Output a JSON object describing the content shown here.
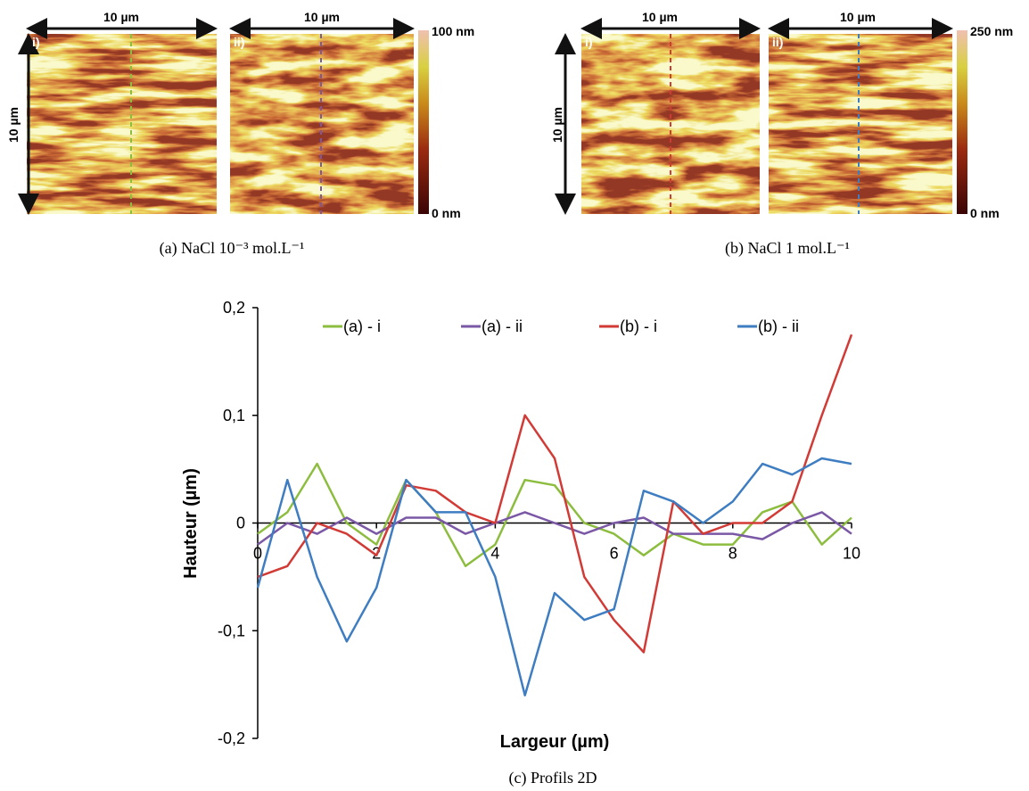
{
  "panels": [
    {
      "caption": "(a) NaCl 10⁻³ mol.L⁻¹",
      "scale_label": "10 µm",
      "images": [
        {
          "label": "i)"
        },
        {
          "label": "ii)"
        }
      ],
      "colorbar": {
        "max_label": "100 nm",
        "min_label": "0 nm"
      }
    },
    {
      "caption": "(b) NaCl 1 mol.L⁻¹",
      "scale_label": "10 µm",
      "images": [
        {
          "label": "i)"
        },
        {
          "label": "ii)"
        }
      ],
      "colorbar": {
        "max_label": "250 nm",
        "min_label": "0 nm"
      }
    }
  ],
  "chart_data": {
    "type": "line",
    "caption": "(c) Profils 2D",
    "x_label": "Largeur (µm)",
    "y_label": "Hauteur (µm)",
    "x": [
      0,
      0.5,
      1,
      1.5,
      2,
      2.5,
      3,
      3.5,
      4,
      4.5,
      5,
      5.5,
      6,
      6.5,
      7,
      7.5,
      8,
      8.5,
      9,
      9.5,
      10
    ],
    "series": [
      {
        "name": "(a) - i",
        "color": "#8dbd3f",
        "values": [
          -0.01,
          0.01,
          0.055,
          0.0,
          -0.02,
          0.04,
          0.01,
          -0.04,
          -0.02,
          0.04,
          0.035,
          0.0,
          -0.01,
          -0.03,
          -0.01,
          -0.02,
          -0.02,
          0.01,
          0.02,
          -0.02,
          0.005
        ]
      },
      {
        "name": "(a) - ii",
        "color": "#7b58a6",
        "values": [
          -0.02,
          0.0,
          -0.01,
          0.005,
          -0.01,
          0.005,
          0.005,
          -0.01,
          0.0,
          0.01,
          0.0,
          -0.01,
          0.0,
          0.005,
          -0.01,
          -0.01,
          -0.01,
          -0.015,
          0.0,
          0.01,
          -0.01
        ]
      },
      {
        "name": "(b) - i",
        "color": "#d23a36",
        "values": [
          -0.05,
          -0.04,
          0.0,
          -0.01,
          -0.03,
          0.035,
          0.03,
          0.01,
          0.0,
          0.1,
          0.06,
          -0.05,
          -0.09,
          -0.12,
          0.02,
          -0.01,
          0.0,
          0.0,
          0.02,
          0.1,
          0.175
        ]
      },
      {
        "name": "(b) - ii",
        "color": "#3e7dc1",
        "values": [
          -0.06,
          0.04,
          -0.05,
          -0.11,
          -0.06,
          0.04,
          0.01,
          0.01,
          -0.05,
          -0.16,
          -0.065,
          -0.09,
          -0.08,
          0.03,
          0.02,
          0.0,
          0.02,
          0.055,
          0.045,
          0.06,
          0.055
        ]
      }
    ],
    "xlim": [
      0,
      10
    ],
    "xticks": [
      0,
      2,
      4,
      6,
      8,
      10
    ],
    "ylim": [
      -0.2,
      0.2
    ],
    "yticks": [
      {
        "value": -0.2,
        "label": "-0,2"
      },
      {
        "value": -0.1,
        "label": "-0,1"
      },
      {
        "value": 0,
        "label": "0"
      },
      {
        "value": 0.1,
        "label": "0,1"
      },
      {
        "value": 0.2,
        "label": "0,2"
      }
    ],
    "legend": "top",
    "grid": false
  }
}
